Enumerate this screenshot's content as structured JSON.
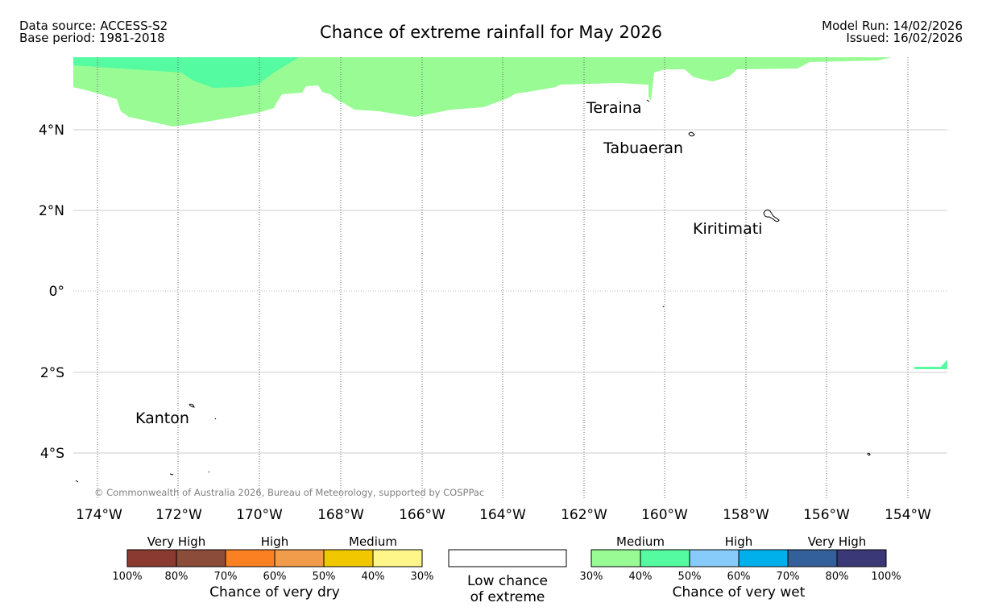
{
  "header": {
    "data_source": "Data source: ACCESS-S2",
    "base_period": "Base period: 1981-2018",
    "title": "Chance of extreme rainfall for May 2026",
    "model_run": "Model Run: 14/02/2026",
    "issued": "Issued: 16/02/2026"
  },
  "map": {
    "lat_labels": [
      "4°N",
      "2°N",
      "0°",
      "2°S",
      "4°S"
    ],
    "lon_labels": [
      "174°W",
      "172°W",
      "170°W",
      "168°W",
      "166°W",
      "164°W",
      "162°W",
      "160°W",
      "158°W",
      "156°W",
      "154°W"
    ],
    "places": [
      {
        "name": "Teraina"
      },
      {
        "name": "Tabuaeran"
      },
      {
        "name": "Kiritimati"
      },
      {
        "name": "Kanton"
      }
    ],
    "copyright": "© Commonwealth of Australia 2026, Bureau of Meteorology, supported by COSPPac",
    "colors": {
      "wet_medium_30_40": "#99fb94",
      "wet_medium_40_50": "#54fba0",
      "grid": "#cccccc"
    }
  },
  "legend": {
    "dry": {
      "groups": [
        "Very High",
        "High",
        "Medium"
      ],
      "colors": [
        "#8b3a32",
        "#8b4c3a",
        "#fb8022",
        "#f09c4a",
        "#f1c800",
        "#fff68a"
      ],
      "ticks": [
        "100%",
        "80%",
        "70%",
        "60%",
        "50%",
        "40%",
        "30%"
      ],
      "caption": "Chance of very dry"
    },
    "neutral": {
      "line1": "Low chance",
      "line2": "of extreme"
    },
    "wet": {
      "groups": [
        "Medium",
        "High",
        "Very High"
      ],
      "colors": [
        "#99fb94",
        "#54fba0",
        "#87cbfa",
        "#00b0eb",
        "#33609b",
        "#3b3878"
      ],
      "ticks": [
        "30%",
        "40%",
        "50%",
        "60%",
        "70%",
        "80%",
        "100%"
      ],
      "caption": "Chance of very wet"
    }
  }
}
